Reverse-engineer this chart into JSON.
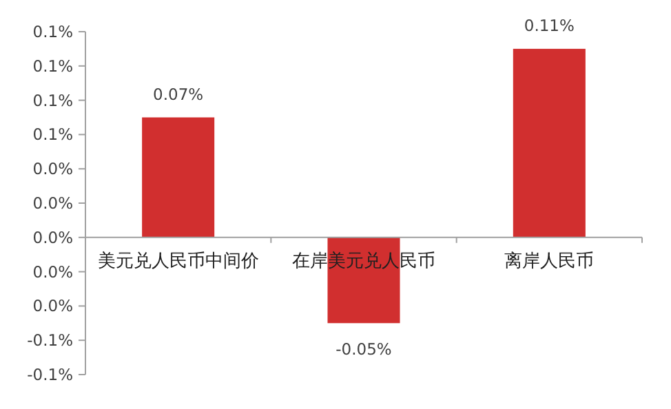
{
  "chart_data": {
    "type": "bar",
    "categories": [
      "美元兑人民币中间价",
      "在岸美元兑人民币",
      "离岸人民币"
    ],
    "values": [
      0.07,
      -0.05,
      0.11
    ],
    "color": "#d12f2f",
    "value_labels": [
      "0.07%",
      "-0.05%",
      "0.11%"
    ],
    "ylim": [
      -0.08,
      0.12
    ],
    "yticks": [
      {
        "value": 0.12,
        "label": "0.1%"
      },
      {
        "value": 0.1,
        "label": "0.1%"
      },
      {
        "value": 0.08,
        "label": "0.1%"
      },
      {
        "value": 0.06,
        "label": "0.1%"
      },
      {
        "value": 0.04,
        "label": "0.0%"
      },
      {
        "value": 0.02,
        "label": "0.0%"
      },
      {
        "value": 0,
        "label": "0.0%"
      },
      {
        "value": -0.02,
        "label": "0.0%"
      },
      {
        "value": -0.04,
        "label": "0.0%"
      },
      {
        "value": -0.06,
        "label": "-0.1%"
      },
      {
        "value": -0.08,
        "label": "-0.1%"
      }
    ]
  }
}
